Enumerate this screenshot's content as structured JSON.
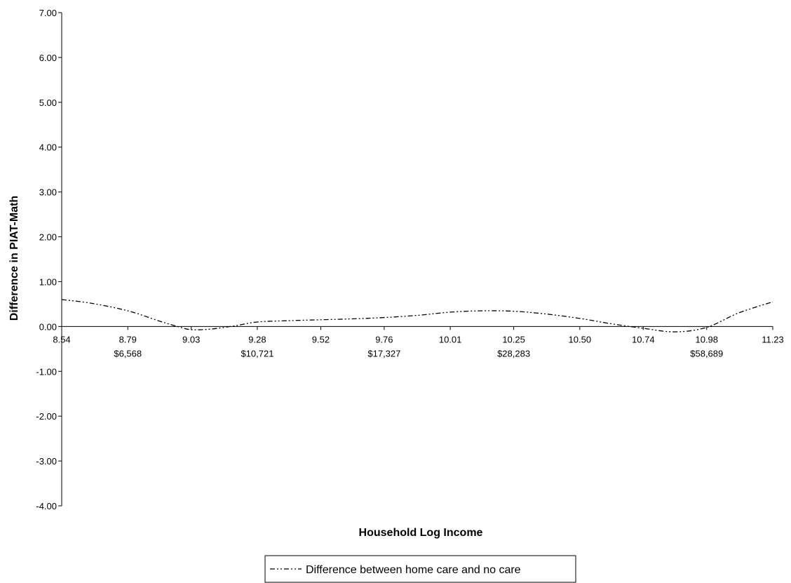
{
  "chart_data": {
    "type": "line",
    "xlabel": "Household Log Income",
    "ylabel": "Difference in PIAT-Math",
    "xlim": [
      8.54,
      11.23
    ],
    "ylim": [
      -4.0,
      7.0
    ],
    "y_ticks": [
      "7.00",
      "6.00",
      "5.00",
      "4.00",
      "3.00",
      "2.00",
      "1.00",
      "0.00",
      "-1.00",
      "-2.00",
      "-3.00",
      "-4.00"
    ],
    "y_tick_values": [
      7,
      6,
      5,
      4,
      3,
      2,
      1,
      0,
      -1,
      -2,
      -3,
      -4
    ],
    "x_ticks": [
      "8.54",
      "8.79",
      "9.03",
      "9.28",
      "9.52",
      "9.76",
      "10.01",
      "10.25",
      "10.50",
      "10.74",
      "10.98",
      "11.23"
    ],
    "x_tick_values": [
      8.54,
      8.79,
      9.03,
      9.28,
      9.52,
      9.76,
      10.01,
      10.25,
      10.5,
      10.74,
      10.98,
      11.23
    ],
    "income_labels": [
      {
        "x": 8.79,
        "label": "$6,568"
      },
      {
        "x": 9.28,
        "label": "$10,721"
      },
      {
        "x": 9.76,
        "label": "$17,327"
      },
      {
        "x": 10.25,
        "label": "$28,283"
      },
      {
        "x": 10.98,
        "label": "$58,689"
      }
    ],
    "legend": {
      "position": "bottom-center"
    },
    "grid": false,
    "series": [
      {
        "name": "Difference between home care and no care",
        "line_style": "dash-dot-dot",
        "color": "#000000",
        "x": [
          8.54,
          8.65,
          8.79,
          8.91,
          8.99,
          9.03,
          9.1,
          9.2,
          9.28,
          9.4,
          9.52,
          9.64,
          9.76,
          9.89,
          10.01,
          10.13,
          10.25,
          10.37,
          10.5,
          10.62,
          10.74,
          10.86,
          10.98,
          11.1,
          11.23
        ],
        "y": [
          0.6,
          0.52,
          0.35,
          0.12,
          -0.02,
          -0.07,
          -0.06,
          0.02,
          0.1,
          0.13,
          0.15,
          0.17,
          0.2,
          0.25,
          0.32,
          0.35,
          0.34,
          0.28,
          0.18,
          0.06,
          -0.04,
          -0.12,
          -0.02,
          0.3,
          0.55
        ]
      }
    ]
  }
}
